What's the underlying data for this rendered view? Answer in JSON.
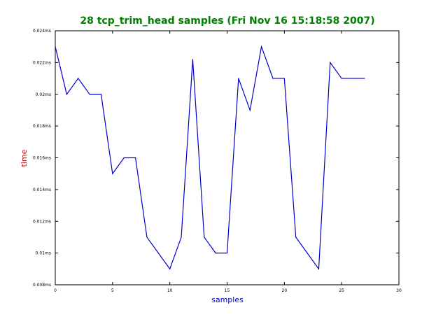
{
  "chart_data": {
    "type": "line",
    "title": "28 tcp_trim_head samples (Fri Nov 16 15:18:58 2007)",
    "xlabel": "samples",
    "ylabel": "time",
    "xlim": [
      0,
      30
    ],
    "ylim": [
      0.008,
      0.024
    ],
    "x_ticks": [
      0,
      5,
      10,
      15,
      20,
      25,
      30
    ],
    "y_ticks": [
      0.008,
      0.01,
      0.012,
      0.014,
      0.016,
      0.018,
      0.02,
      0.022,
      0.024
    ],
    "y_tick_labels": [
      "0.008ms",
      "0.01ms",
      "0.012ms",
      "0.014ms",
      "0.016ms",
      "0.018ms",
      "0.02ms",
      "0.022ms",
      "0.024ms"
    ],
    "grid": false,
    "colors": {
      "title": "#008000",
      "xlabel": "#0000cc",
      "ylabel": "#cc0000",
      "line": "#0000cc"
    },
    "series": [
      {
        "x": [
          0,
          1,
          2,
          3,
          4,
          5,
          6,
          7,
          8,
          9,
          10,
          11,
          12,
          13,
          14,
          15,
          16,
          17,
          18,
          19,
          20,
          21,
          22,
          23,
          24,
          25,
          26,
          27
        ],
        "values": [
          0.023,
          0.02,
          0.021,
          0.02,
          0.02,
          0.015,
          0.016,
          0.016,
          0.011,
          0.01,
          0.009,
          0.011,
          0.0222,
          0.011,
          0.01,
          0.01,
          0.021,
          0.019,
          0.023,
          0.021,
          0.021,
          0.011,
          0.01,
          0.009,
          0.022,
          0.021,
          0.021,
          0.021
        ]
      }
    ]
  }
}
